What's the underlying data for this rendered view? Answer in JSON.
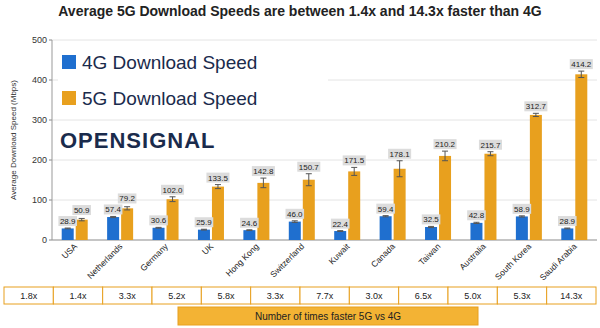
{
  "chart_data": {
    "type": "bar",
    "title": "Average 5G Download Speeds are between 1.4x and 14.3x faster than 4G",
    "y_label": "Average Download Speed (Mbps)",
    "categories": [
      "USA",
      "Netherlands",
      "Germany",
      "UK",
      "Hong Kong",
      "Switzerland",
      "Kuwait",
      "Canada",
      "Taiwan",
      "Australia",
      "South Korea",
      "Saudi Arabia"
    ],
    "series": [
      {
        "name": "4G Download Speed",
        "color": "#1f6fcf",
        "values": [
          28.9,
          57.4,
          30.6,
          25.9,
          24.6,
          46.0,
          22.4,
          59.4,
          32.5,
          42.8,
          58.9,
          28.9
        ],
        "value_labels": [
          "28.9",
          "57.4",
          "30.6",
          "25.9",
          "24.6",
          "46.0",
          "22.4",
          "59.4",
          "32.5",
          "42.8",
          "58.9",
          "28.9"
        ],
        "errors": [
          1,
          1.5,
          1,
          1,
          1,
          2,
          1,
          1.5,
          1.5,
          1.5,
          1.5,
          1
        ]
      },
      {
        "name": "5G Download Speed",
        "color": "#e8a01e",
        "values": [
          50.9,
          79.2,
          102.0,
          133.5,
          142.8,
          150.7,
          171.5,
          178.1,
          210.2,
          215.7,
          312.7,
          414.2
        ],
        "value_labels": [
          "50.9",
          "79.2",
          "102.0",
          "133.5",
          "142.8",
          "150.7",
          "171.5",
          "178.1",
          "210.2",
          "215.7",
          "312.7",
          "414.2"
        ],
        "errors": [
          3,
          4,
          6,
          5,
          12,
          15,
          10,
          20,
          12,
          5,
          4,
          8
        ]
      }
    ],
    "ylim": [
      0,
      500
    ],
    "yticks": [
      0,
      100,
      200,
      300,
      400,
      500
    ],
    "grid": true,
    "legend": "upper left",
    "data_labels": true
  },
  "logo": "OPENSIGNAL",
  "ratio_table": {
    "caption": "Number of times faster 5G vs 4G",
    "cells": [
      "1.8x",
      "1.4x",
      "3.3x",
      "5.2x",
      "5.8x",
      "3.3x",
      "7.7x",
      "3.0x",
      "6.5x",
      "5.0x",
      "5.3x",
      "14.3x"
    ]
  }
}
